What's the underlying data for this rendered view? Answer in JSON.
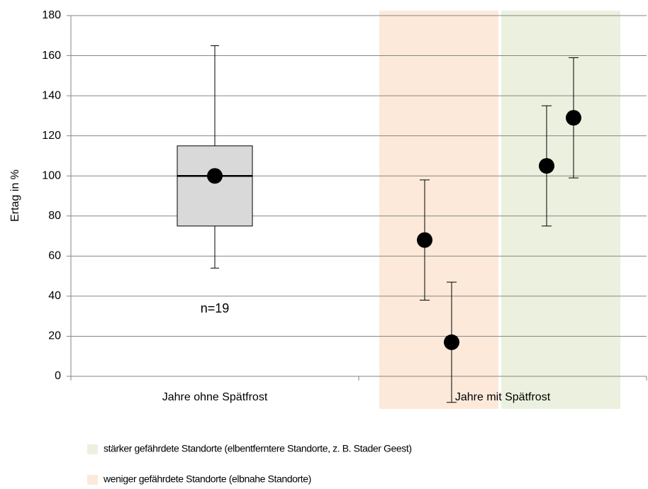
{
  "chart_data": {
    "type": "box",
    "ylabel": "Ertag in %",
    "categories": [
      "Jahre ohne Spätfrost",
      "Jahre mit Spätfrost"
    ],
    "ylim": [
      0,
      180
    ],
    "yticks": [
      0,
      20,
      40,
      60,
      80,
      100,
      120,
      140,
      160,
      180
    ],
    "grid": true,
    "box": {
      "whisker_low": 54,
      "q1": 75,
      "median": 100,
      "q3": 115,
      "whisker_high": 165,
      "mean": 100,
      "color": "#d9d9d9"
    },
    "annotation": "n=19",
    "series": [
      {
        "name": "stärker gefährdete Standorte (elbentferntere Standorte, z. B. Stader Geest)",
        "color": "#ebf1de",
        "values": [
          105,
          129
        ],
        "errors": [
          30,
          30
        ]
      },
      {
        "name": "weniger gefährdete Standorte (elbnahe Standorte)",
        "color": "#fde9d9",
        "values": [
          68,
          17
        ],
        "errors": [
          30,
          30
        ]
      }
    ]
  }
}
